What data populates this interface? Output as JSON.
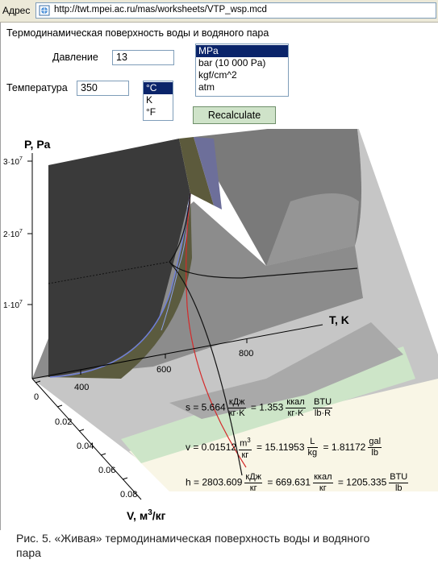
{
  "browser": {
    "address_label": "Адрес",
    "url": "http://twt.mpei.ac.ru/mas/worksheets/VTP_wsp.mcd"
  },
  "page": {
    "title": "Термодинамическая поверхность воды и водяного пара",
    "pressure_label": "Давление",
    "pressure_value": "13",
    "temperature_label": "Температура",
    "temperature_value": "350",
    "pressure_units": [
      "MPa",
      "bar (10 000 Pa)",
      "kgf/cm^2",
      "atm"
    ],
    "pressure_unit_selected": "MPa",
    "temperature_units": [
      "°C",
      "K",
      "°F"
    ],
    "temperature_unit_selected": "°C",
    "recalculate_label": "Recalculate"
  },
  "plot": {
    "p_axis_label": "P, Pa",
    "p_ticks": [
      {
        "m": "3·10",
        "e": "7"
      },
      {
        "m": "2·10",
        "e": "7"
      },
      {
        "m": "1·10",
        "e": "7"
      }
    ],
    "t_axis_label": "T, K",
    "t_ticks": [
      "400",
      "600",
      "800"
    ],
    "v_axis_label": "V, м",
    "v_axis_sup": "3",
    "v_axis_suffix": "/кг",
    "v_ticks": [
      "0",
      "0.02",
      "0.04",
      "0.06",
      "0.08"
    ],
    "colors": {
      "two_phase": "#3a3a3a",
      "gas_light": "#c8c8c8",
      "band_green": "#cfe6c9",
      "band_cream": "#fbf8e8",
      "isotherm": "#d42a2a",
      "saturation_line": "#6f7fd8",
      "olive": "#5c5a3c"
    }
  },
  "results": {
    "s": {
      "lhs": "s = 5.664",
      "u1n": "кДж",
      "u1d": "кг·K",
      "v2": "= 1.353",
      "u2n": "ккал",
      "u2d": "кг·K",
      "u3n": "BTU",
      "u3d": "lb·R"
    },
    "v": {
      "lhs": "v = 0.01512",
      "u1n": "m",
      "u1sup": "3",
      "u1d": "кг",
      "v2": "= 15.11953",
      "u2n": "L",
      "u2d": "kg",
      "v3": "= 1.81172",
      "u3n": "gal",
      "u3d": "lb"
    },
    "h": {
      "lhs": "h = 2803.609",
      "u1n": "кДж",
      "u1d": "кг",
      "v2": "= 669.631",
      "u2n": "ккал",
      "u2d": "кг",
      "v3": "= 1205.335",
      "u3n": "BTU",
      "u3d": "lb"
    }
  },
  "caption": "Рис. 5. «Живая» термодинамическая поверхность воды и водяного пара"
}
